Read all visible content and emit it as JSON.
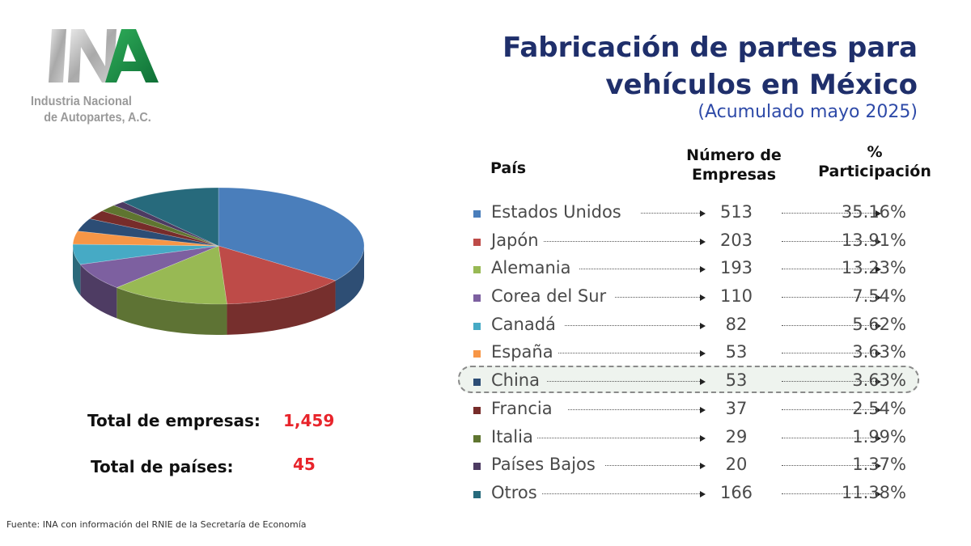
{
  "logo": {
    "line1": "Industria Nacional",
    "line2": "de Autopartes, A.C."
  },
  "title": {
    "line1": "Fabricación de partes para",
    "line2": "vehículos en México",
    "subtitle": "(Acumulado mayo 2025)"
  },
  "headers": {
    "pais": "País",
    "num_l1": "Número de",
    "num_l2": "Empresas",
    "pct_l1": "%",
    "pct_l2": "Participación"
  },
  "totals": {
    "empresas_label": "Total de empresas:",
    "empresas_value": "1,459",
    "paises_label": "Total de países:",
    "paises_value": "45"
  },
  "source": "Fuente: INA con información del RNIE de la Secretaría de Economía",
  "highlighted_row": "China",
  "chart_data": {
    "type": "pie",
    "style": "3d",
    "categories": [
      "Estados Unidos",
      "Japón",
      "Alemania",
      "Corea del Sur",
      "Canadá",
      "España",
      "China",
      "Francia",
      "Italia",
      "Países Bajos",
      "Otros"
    ],
    "values": [
      513,
      203,
      193,
      110,
      82,
      53,
      53,
      37,
      29,
      20,
      166
    ],
    "percentages": [
      "35.16%",
      "13.91%",
      "13.23%",
      "7.54%",
      "5.62%",
      "3.63%",
      "3.63%",
      "2.54%",
      "1.99%",
      "1.37%",
      "11.38%"
    ],
    "value_labels": [
      "513",
      "203",
      "193",
      "110",
      "82",
      "53",
      "53",
      "37",
      "29",
      "20",
      "166"
    ],
    "colors": [
      "#4a7ebb",
      "#be4b48",
      "#98b954",
      "#7d60a0",
      "#46aac5",
      "#f79646",
      "#2c4d75",
      "#772c2a",
      "#5f7530",
      "#4d3b62",
      "#276a7c"
    ]
  }
}
